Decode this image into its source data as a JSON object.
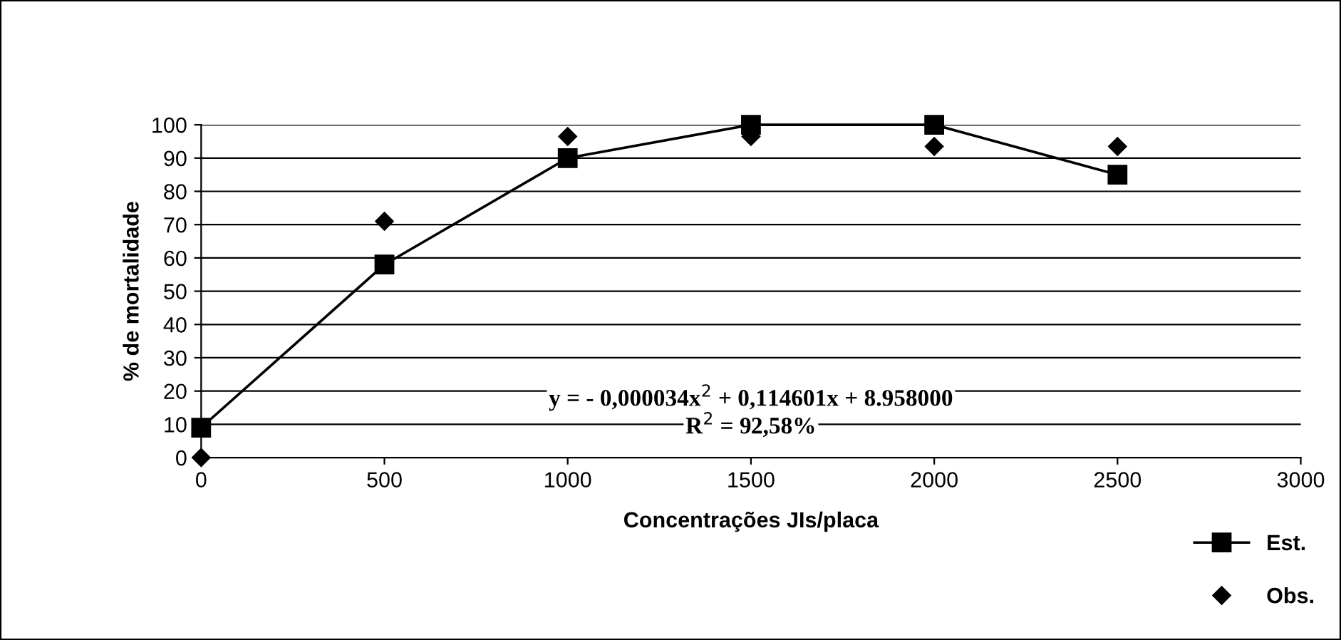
{
  "chart_data": {
    "type": "scatter",
    "xlabel": "Concentrações JIs/placa",
    "ylabel": "% de mortalidade",
    "x": [
      0,
      500,
      1000,
      1500,
      2000,
      2500
    ],
    "series": [
      {
        "name": "Est.",
        "type": "line",
        "color": "#000000",
        "marker": "square",
        "values": [
          9,
          58,
          90,
          100,
          100,
          85
        ]
      },
      {
        "name": "Obs.",
        "color": "#000000",
        "marker": "diamond",
        "values": [
          0,
          71,
          96.5,
          96.5,
          93.5,
          93.5
        ]
      }
    ],
    "xlim": [
      0,
      3000
    ],
    "xticks": [
      0,
      500,
      1000,
      1500,
      2000,
      2500,
      3000
    ],
    "ylim": [
      0,
      100
    ],
    "yticks": [
      0,
      10,
      20,
      30,
      40,
      50,
      60,
      70,
      80,
      90,
      100
    ],
    "grid": "y",
    "legend": "bottom right",
    "annotations": [
      "y = - 0,000034x$^{2}$ + 0,114601x + 8.958000",
      "R$^{2}$ = 92,58%"
    ]
  }
}
